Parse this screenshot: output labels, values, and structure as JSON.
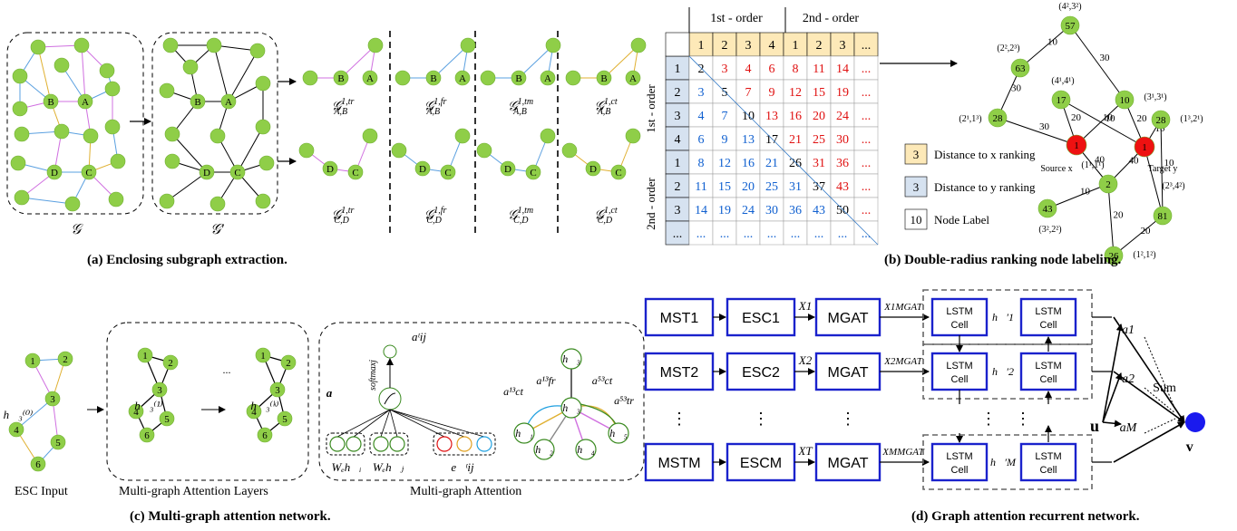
{
  "captions": {
    "a": "(a) Enclosing subgraph extraction.",
    "b": "(b) Double-radius ranking node labeling.",
    "c": "(c) Multi-graph attention network.",
    "d": "(d) Graph attention recurrent network."
  },
  "panel_a": {
    "node_labels": {
      "A": "A",
      "B": "B",
      "C": "C",
      "D": "D"
    },
    "graph_labels": {
      "g": "𝒢",
      "gp": "𝒢′"
    },
    "subgraph_labels_top": [
      "𝒢ᴬᴮ tr",
      "𝒢ᴬᴮ fr",
      "𝒢ᴬᴮ tm",
      "𝒢ᴬᴮ ct"
    ],
    "sub_main": "𝒢",
    "sub_sup": [
      "1,tr",
      "1,fr",
      "1,tm",
      "1,ct"
    ],
    "sub_sub_top": "A,B",
    "sub_sub_bottom": "C,D"
  },
  "panel_b": {
    "order1": "1st - order",
    "order2": "2nd - order",
    "col_headers": [
      "1",
      "2",
      "3",
      "4",
      "1",
      "2",
      "3",
      "..."
    ],
    "row_headers": [
      "1",
      "2",
      "3",
      "4",
      "1",
      "2",
      "3",
      "..."
    ],
    "cells": [
      [
        "2",
        "3",
        "4",
        "6",
        "8",
        "11",
        "14",
        "..."
      ],
      [
        "3",
        "5",
        "7",
        "9",
        "12",
        "15",
        "19",
        "..."
      ],
      [
        "4",
        "7",
        "10",
        "13",
        "16",
        "20",
        "24",
        "..."
      ],
      [
        "6",
        "9",
        "13",
        "17",
        "21",
        "25",
        "30",
        "..."
      ],
      [
        "8",
        "12",
        "16",
        "21",
        "26",
        "31",
        "36",
        "..."
      ],
      [
        "11",
        "15",
        "20",
        "25",
        "31",
        "37",
        "43",
        "..."
      ],
      [
        "14",
        "19",
        "24",
        "30",
        "36",
        "43",
        "50",
        "..."
      ],
      [
        "...",
        "...",
        "...",
        "...",
        "...",
        "...",
        "...",
        "..."
      ]
    ],
    "legend": [
      "Distance to x ranking",
      "Distance to y ranking",
      "Node Label"
    ],
    "legend_values": [
      "3",
      "3",
      "10"
    ],
    "graph": {
      "source_label": "Source x",
      "target_label": "Target y",
      "nodes": [
        "57",
        "63",
        "17",
        "10",
        "28",
        "28",
        "2",
        "43",
        "81",
        "26"
      ],
      "node_tags": [
        "(4²,3²)",
        "(2²,2³)",
        "(4¹,4¹)",
        "(3¹,3¹)",
        "(2¹,1³)",
        "(1³,2¹)",
        "(1¹,1¹)",
        "(3²,2²)",
        "(2³,4²)",
        "(1²,1²)"
      ],
      "edge_weights": [
        "10",
        "30",
        "30",
        "10",
        "20",
        "30",
        "10",
        "20",
        "10",
        "40",
        "40",
        "10",
        "20",
        "20",
        "10",
        "20"
      ]
    }
  },
  "panel_c": {
    "labels": {
      "esc_input": "ESC Input",
      "mga_layers": "Multi-graph Attention Layers",
      "mga": "Multi-graph Attention",
      "softmax": "softmaxj",
      "a_vec": "a⃗",
      "aij": "aᵗij",
      "wh_i": "Wₑh⃗ᵢ",
      "wh_j": "Wₑh⃗ⱼ",
      "e_ij": "e⃗ᵗij",
      "h3_0": "h⃗₃⁽⁰⁾",
      "h3_1": "h⃗₃⁽¹⁾",
      "h3_k": "h⃗₃⁽ᵏ⁾",
      "dots": "...",
      "a13ct": "a¹³ct",
      "a13fr": "a¹³fr",
      "a53ct": "a⁵³ct",
      "a53tr": "a⁵³tr",
      "h1": "h⃗₁",
      "h2": "h⃗₂",
      "h3": "h⃗₃",
      "h4": "h⃗₄",
      "h5": "h⃗₅"
    },
    "nodes": [
      "1",
      "2",
      "3",
      "4",
      "5",
      "6"
    ]
  },
  "panel_d": {
    "mst": [
      "MST1",
      "MST2",
      "MSTM"
    ],
    "esc": [
      "ESC1",
      "ESC2",
      "ESCM"
    ],
    "mgat": "MGAT",
    "x_in": [
      "X1",
      "X2",
      "XT"
    ],
    "x_out": [
      "X1MGAT",
      "X2MGAT",
      "XMMGAT"
    ],
    "lstm": "LSTM Cell",
    "h_prime": [
      "h⃗′1",
      "h⃗′2",
      "h⃗′M"
    ],
    "a_labels": [
      "a1",
      "a2",
      "aM"
    ],
    "u": "u⃗",
    "v": "v⃗",
    "sum": "Sum",
    "colors": {
      "box": "#1a22cc",
      "v_node": "#1a1aee"
    }
  },
  "colors": {
    "node_green": "#8fce48",
    "cell_orange": "#fde9b8",
    "cell_blue": "#d6e2f0",
    "red_node": "#ee1111"
  }
}
